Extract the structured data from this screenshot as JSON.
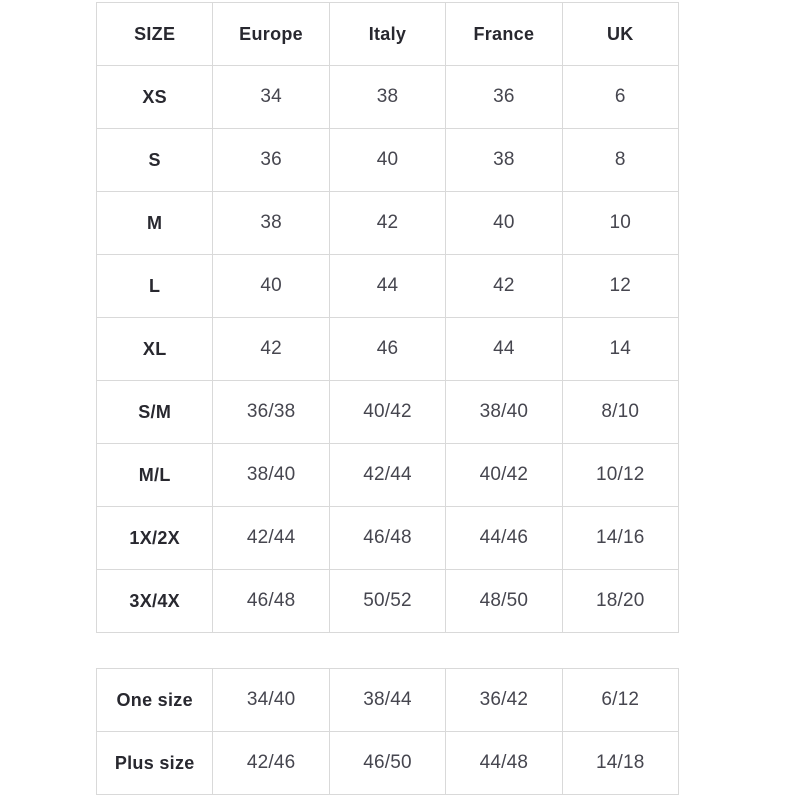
{
  "colors": {
    "background": "#ffffff",
    "border": "#d9d9d9",
    "header_text": "#28282f",
    "cell_text": "#46464f"
  },
  "main_table": {
    "headers": [
      "SIZE",
      "Europe",
      "Italy",
      "France",
      "UK"
    ],
    "rows": [
      [
        "XS",
        "34",
        "38",
        "36",
        "6"
      ],
      [
        "S",
        "36",
        "40",
        "38",
        "8"
      ],
      [
        "M",
        "38",
        "42",
        "40",
        "10"
      ],
      [
        "L",
        "40",
        "44",
        "42",
        "12"
      ],
      [
        "XL",
        "42",
        "46",
        "44",
        "14"
      ],
      [
        "S/M",
        "36/38",
        "40/42",
        "38/40",
        "8/10"
      ],
      [
        "M/L",
        "38/40",
        "42/44",
        "40/42",
        "10/12"
      ],
      [
        "1X/2X",
        "42/44",
        "46/48",
        "44/46",
        "14/16"
      ],
      [
        "3X/4X",
        "46/48",
        "50/52",
        "48/50",
        "18/20"
      ]
    ]
  },
  "secondary_table": {
    "rows": [
      [
        "One size",
        "34/40",
        "38/44",
        "36/42",
        "6/12"
      ],
      [
        "Plus size",
        "42/46",
        "46/50",
        "44/48",
        "14/18"
      ]
    ]
  },
  "chart_data": {
    "type": "table",
    "title": "",
    "columns": [
      "SIZE",
      "Europe",
      "Italy",
      "France",
      "UK"
    ],
    "rows": [
      [
        "XS",
        "34",
        "38",
        "36",
        "6"
      ],
      [
        "S",
        "36",
        "40",
        "38",
        "8"
      ],
      [
        "M",
        "38",
        "42",
        "40",
        "10"
      ],
      [
        "L",
        "40",
        "44",
        "42",
        "12"
      ],
      [
        "XL",
        "42",
        "46",
        "44",
        "14"
      ],
      [
        "S/M",
        "36/38",
        "40/42",
        "38/40",
        "8/10"
      ],
      [
        "M/L",
        "38/40",
        "42/44",
        "40/42",
        "10/12"
      ],
      [
        "1X/2X",
        "42/44",
        "46/48",
        "44/46",
        "14/16"
      ],
      [
        "3X/4X",
        "46/48",
        "50/52",
        "48/50",
        "18/20"
      ],
      [
        "One size",
        "34/40",
        "38/44",
        "36/42",
        "6/12"
      ],
      [
        "Plus size",
        "42/46",
        "46/50",
        "44/48",
        "14/18"
      ]
    ]
  }
}
